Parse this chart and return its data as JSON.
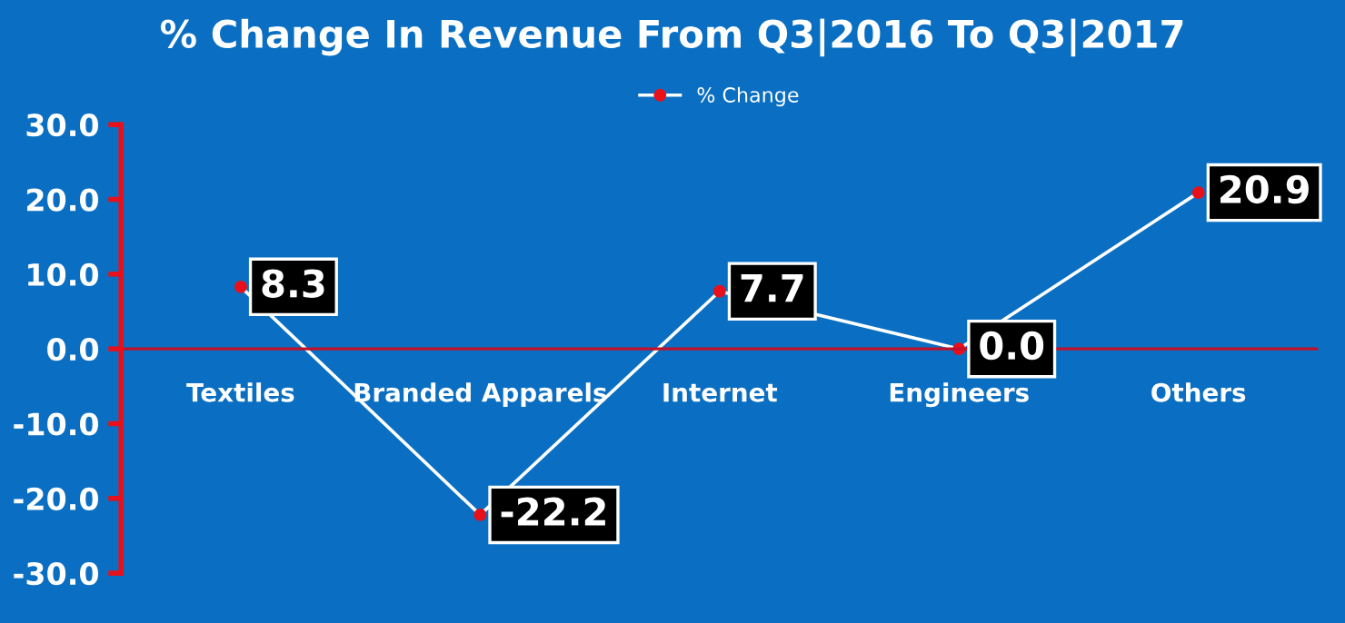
{
  "chart_data": {
    "type": "line",
    "title": "% Change In Revenue From Q3|2016 To Q3|2017",
    "categories": [
      "Textiles",
      "Branded Apparels",
      "Internet",
      "Engineers",
      "Others"
    ],
    "series": [
      {
        "name": "% Change",
        "color": "#ffffff",
        "values": [
          8.3,
          -22.2,
          7.7,
          0.0,
          20.9
        ],
        "value_labels": [
          "8.3",
          "-22.2",
          "7.7",
          "0.0",
          "20.9"
        ]
      }
    ],
    "ylim": [
      -30,
      30
    ],
    "yticks": [
      {
        "value": -30,
        "label": "-30.0"
      },
      {
        "value": -20,
        "label": "-20.0"
      },
      {
        "value": -10,
        "label": "-10.0"
      },
      {
        "value": 0,
        "label": "0.0"
      },
      {
        "value": 10,
        "label": "10.0"
      },
      {
        "value": 20,
        "label": "20.0"
      },
      {
        "value": 30,
        "label": "30.0"
      }
    ],
    "legend": "top",
    "marker": "circle",
    "grid": false
  }
}
